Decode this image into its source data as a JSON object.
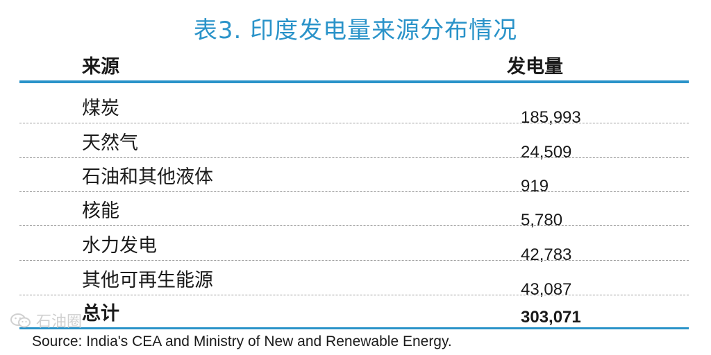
{
  "title": "表3. 印度发电量来源分布情况",
  "header": {
    "source_label": "来源",
    "value_label": "发电量"
  },
  "rows": [
    {
      "source": "煤炭",
      "value": "185,993"
    },
    {
      "source": "天然气",
      "value": "24,509"
    },
    {
      "source": "石油和其他液体",
      "value": "919"
    },
    {
      "source": "核能",
      "value": "5,780"
    },
    {
      "source": "水力发电",
      "value": "42,783"
    },
    {
      "source": "其他可再生能源",
      "value": "43,087"
    }
  ],
  "total": {
    "source": "总计",
    "value": "303,071"
  },
  "source_note": "Source: India's CEA and Ministry of New and Renewable Energy.",
  "watermark": {
    "text": "石油圈",
    "icon": "wechat-icon"
  },
  "colors": {
    "accent": "#2a93c9"
  }
}
